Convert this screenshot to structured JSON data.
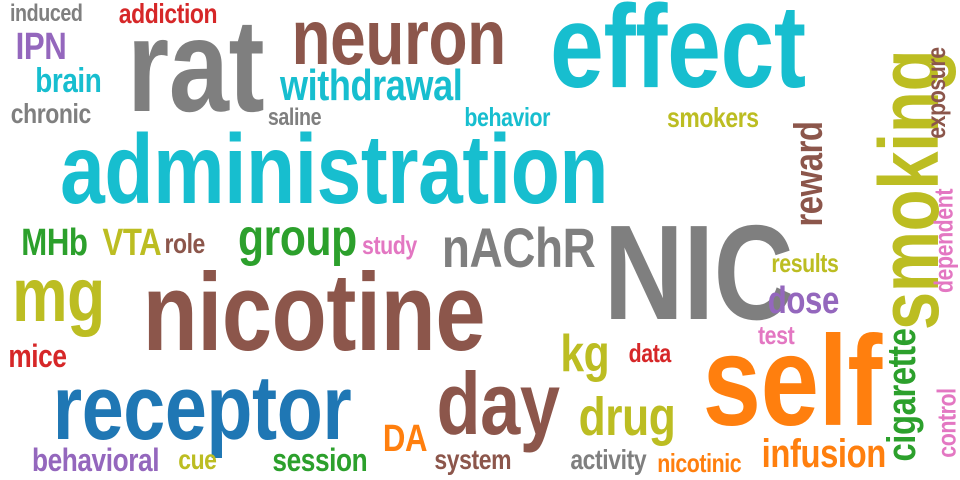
{
  "palette": {
    "brown": "#8c564b",
    "cyan": "#17becf",
    "gray": "#7f7f7f",
    "olive": "#bcbd22",
    "blue": "#1f77b4",
    "orange": "#ff7f0e",
    "green": "#2ca02c",
    "red": "#d62728",
    "purple": "#9467bd",
    "pink": "#e377c2"
  },
  "words": [
    {
      "id": "administration",
      "text": "administration"
    },
    {
      "id": "nicotine",
      "text": "nicotine"
    },
    {
      "id": "NIC",
      "text": "NIC"
    },
    {
      "id": "self",
      "text": "self"
    },
    {
      "id": "effect",
      "text": "effect"
    },
    {
      "id": "rat",
      "text": "rat"
    },
    {
      "id": "receptor",
      "text": "receptor"
    },
    {
      "id": "smoking",
      "text": "smoking"
    },
    {
      "id": "neuron",
      "text": "neuron"
    },
    {
      "id": "day",
      "text": "day"
    },
    {
      "id": "mg",
      "text": "mg"
    },
    {
      "id": "withdrawal",
      "text": "withdrawal"
    },
    {
      "id": "nAChR",
      "text": "nAChR"
    },
    {
      "id": "group",
      "text": "group"
    },
    {
      "id": "drug",
      "text": "drug"
    },
    {
      "id": "cigarette",
      "text": "cigarette"
    },
    {
      "id": "reward",
      "text": "reward"
    },
    {
      "id": "brain",
      "text": "brain"
    },
    {
      "id": "IPN",
      "text": "IPN"
    },
    {
      "id": "addiction",
      "text": "addiction"
    },
    {
      "id": "induced",
      "text": "induced"
    },
    {
      "id": "chronic",
      "text": "chronic"
    },
    {
      "id": "saline",
      "text": "saline"
    },
    {
      "id": "behavior",
      "text": "behavior"
    },
    {
      "id": "smokers",
      "text": "smokers"
    },
    {
      "id": "exposure",
      "text": "exposure"
    },
    {
      "id": "MHb",
      "text": "MHb"
    },
    {
      "id": "VTA",
      "text": "VTA"
    },
    {
      "id": "role",
      "text": "role"
    },
    {
      "id": "study",
      "text": "study"
    },
    {
      "id": "results",
      "text": "results"
    },
    {
      "id": "dose",
      "text": "dose"
    },
    {
      "id": "dependent",
      "text": "dependent"
    },
    {
      "id": "test",
      "text": "test"
    },
    {
      "id": "mice",
      "text": "mice"
    },
    {
      "id": "kg",
      "text": "kg"
    },
    {
      "id": "data",
      "text": "data"
    },
    {
      "id": "DA",
      "text": "DA"
    },
    {
      "id": "control",
      "text": "control"
    },
    {
      "id": "infusion",
      "text": "infusion"
    },
    {
      "id": "behavioral",
      "text": "behavioral"
    },
    {
      "id": "cue",
      "text": "cue"
    },
    {
      "id": "session",
      "text": "session"
    },
    {
      "id": "system",
      "text": "system"
    },
    {
      "id": "activity",
      "text": "activity"
    },
    {
      "id": "nicotinic",
      "text": "nicotinic"
    }
  ]
}
